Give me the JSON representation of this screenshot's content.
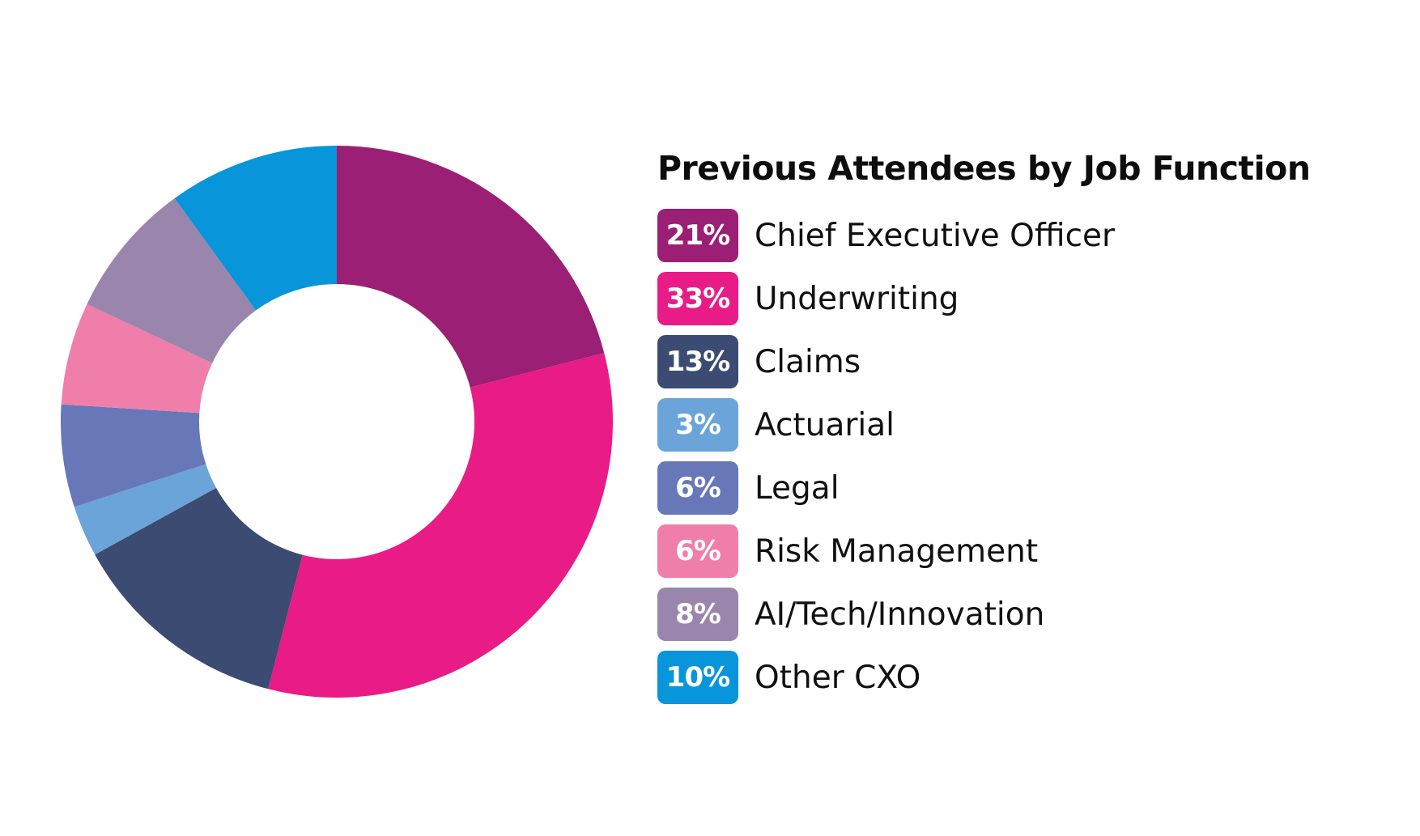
{
  "chart_data": {
    "type": "pie",
    "donut": true,
    "title": "Previous Attendees by Job Function",
    "legend_position": "right",
    "slices": [
      {
        "label": "Chief Executive Officer",
        "value": 21,
        "display": "21%",
        "color": "#9b1f74"
      },
      {
        "label": "Underwriting",
        "value": 33,
        "display": "33%",
        "color": "#e91b86"
      },
      {
        "label": "Claims",
        "value": 13,
        "display": "13%",
        "color": "#3b4b71"
      },
      {
        "label": "Actuarial",
        "value": 3,
        "display": "3%",
        "color": "#6aa4d8"
      },
      {
        "label": "Legal",
        "value": 6,
        "display": "6%",
        "color": "#6877b8"
      },
      {
        "label": "Risk Management",
        "value": 6,
        "display": "6%",
        "color": "#ef7eab"
      },
      {
        "label": "AI/Tech/Innovation",
        "value": 8,
        "display": "8%",
        "color": "#9a85ac"
      },
      {
        "label": "Other CXO",
        "value": 10,
        "display": "10%",
        "color": "#0895da"
      }
    ]
  }
}
